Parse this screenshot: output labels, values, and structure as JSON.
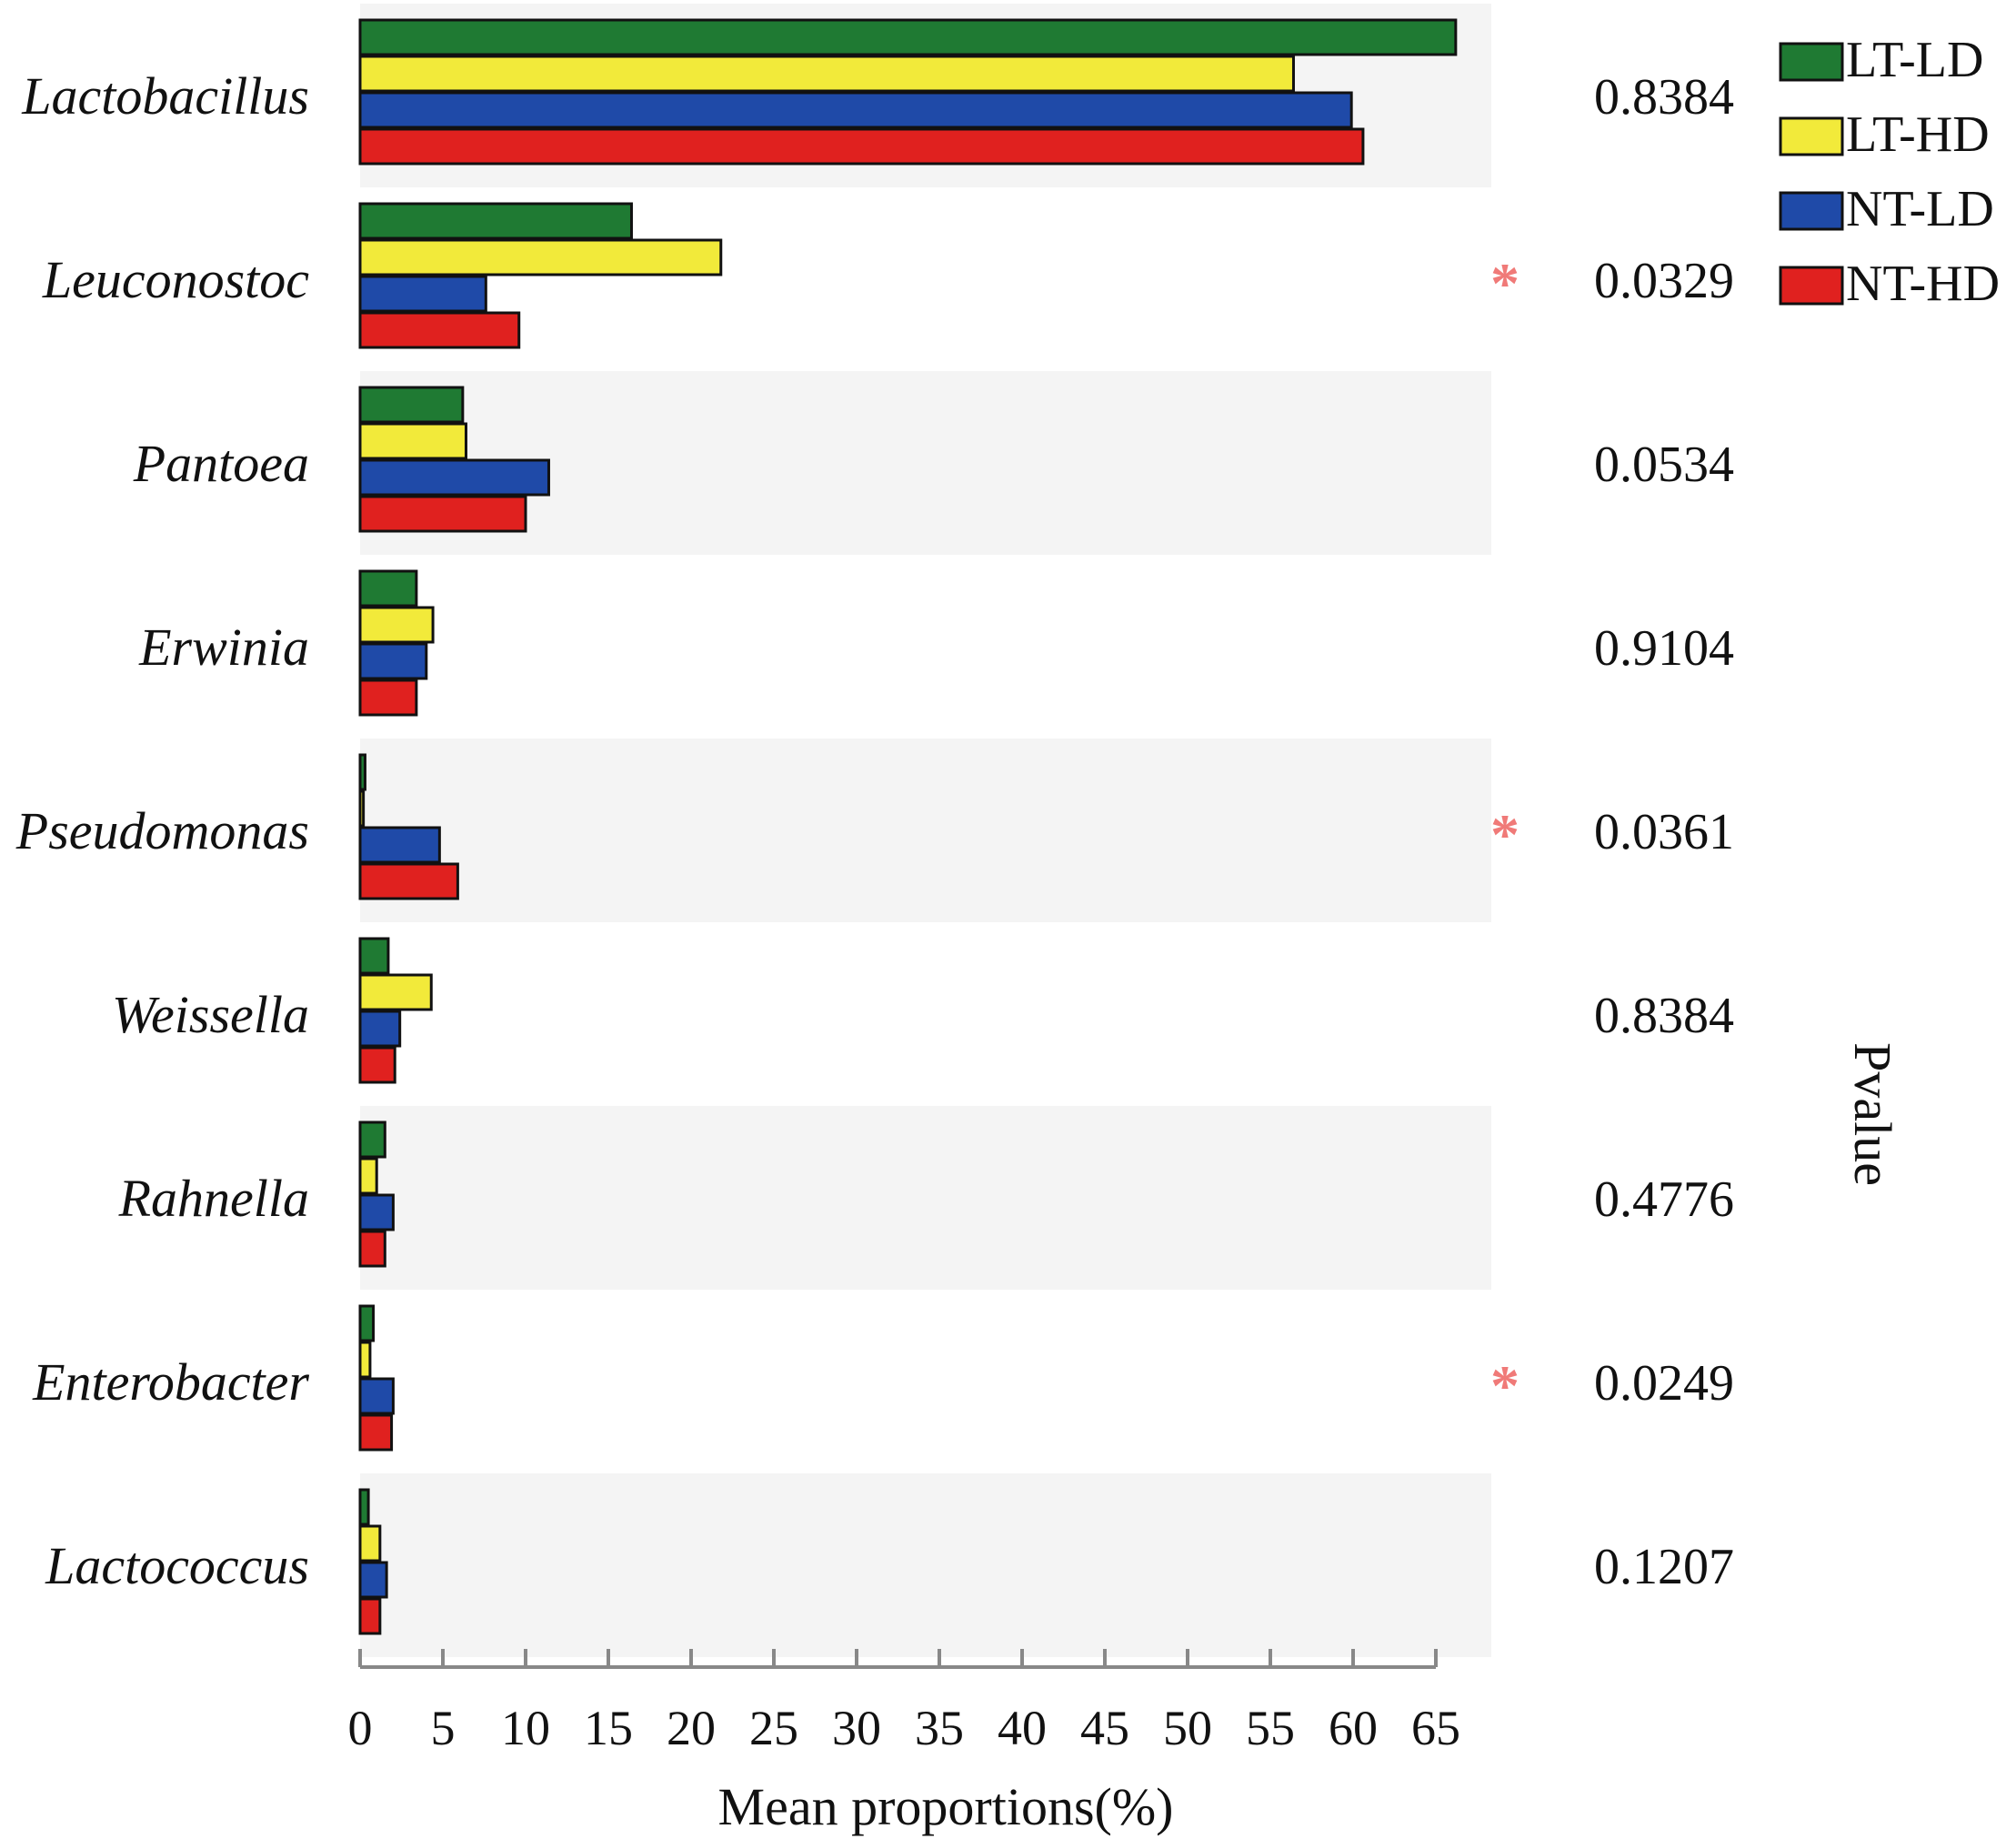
{
  "chart_data": {
    "type": "bar",
    "orientation": "horizontal",
    "categories": [
      "Lactobacillus",
      "Leuconostoc",
      "Pantoea",
      "Erwinia",
      "Pseudomonas",
      "Weissella",
      "Rahnella",
      "Enterobacter",
      "Lactococcus"
    ],
    "series": [
      {
        "name": "LT-LD",
        "color": "#1f7a33",
        "values": [
          66.2,
          16.4,
          6.2,
          3.4,
          0.3,
          1.7,
          1.5,
          0.8,
          0.5
        ]
      },
      {
        "name": "LT-HD",
        "color": "#f2ea3a",
        "values": [
          56.4,
          21.8,
          6.4,
          4.4,
          0.2,
          4.3,
          1.0,
          0.6,
          1.2
        ]
      },
      {
        "name": "NT-LD",
        "color": "#1f4aa8",
        "values": [
          59.9,
          7.6,
          11.4,
          4.0,
          4.8,
          2.4,
          2.0,
          2.0,
          1.6
        ]
      },
      {
        "name": "NT-HD",
        "color": "#e0211f",
        "values": [
          60.6,
          9.6,
          10.0,
          3.4,
          5.9,
          2.1,
          1.5,
          1.9,
          1.2
        ]
      }
    ],
    "pvalues": [
      "0.8384",
      "0.0329",
      "0.0534",
      "0.9104",
      "0.0361",
      "0.8384",
      "0.4776",
      "0.0249",
      "0.1207"
    ],
    "significant": [
      false,
      true,
      false,
      false,
      true,
      false,
      false,
      true,
      false
    ],
    "significance_marker": "*",
    "significance_color": "#f07a78",
    "xlabel": "Mean proportions(%)",
    "right_label": "Pvalue",
    "xlim": [
      0,
      67
    ],
    "xticks": [
      0,
      5,
      10,
      15,
      20,
      25,
      30,
      35,
      40,
      45,
      50,
      55,
      60,
      65
    ],
    "legend_position": "top-right",
    "band_color": "#f4f4f4",
    "grid": false
  }
}
